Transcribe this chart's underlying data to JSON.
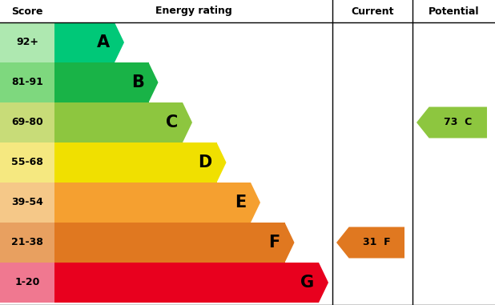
{
  "header_score": "Score",
  "header_energy": "Energy rating",
  "header_current": "Current",
  "header_potential": "Potential",
  "bands": [
    {
      "label": "A",
      "score": "92+",
      "color": "#00c878",
      "bg": "#aee8b0"
    },
    {
      "label": "B",
      "score": "81-91",
      "color": "#19b347",
      "bg": "#7ed87e"
    },
    {
      "label": "C",
      "score": "69-80",
      "color": "#8dc63f",
      "bg": "#c8dc78"
    },
    {
      "label": "D",
      "score": "55-68",
      "color": "#f0e000",
      "bg": "#f5e880"
    },
    {
      "label": "E",
      "score": "39-54",
      "color": "#f5a030",
      "bg": "#f5c888"
    },
    {
      "label": "F",
      "score": "21-38",
      "color": "#e07820",
      "bg": "#e8a060"
    },
    {
      "label": "G",
      "score": "1-20",
      "color": "#e8001e",
      "bg": "#f07890"
    }
  ],
  "current": {
    "label": "31  F",
    "color": "#e07820",
    "band_index": 5
  },
  "potential": {
    "label": "73  C",
    "color": "#8dc63f",
    "band_index": 2
  },
  "bg_color": "#ffffff"
}
